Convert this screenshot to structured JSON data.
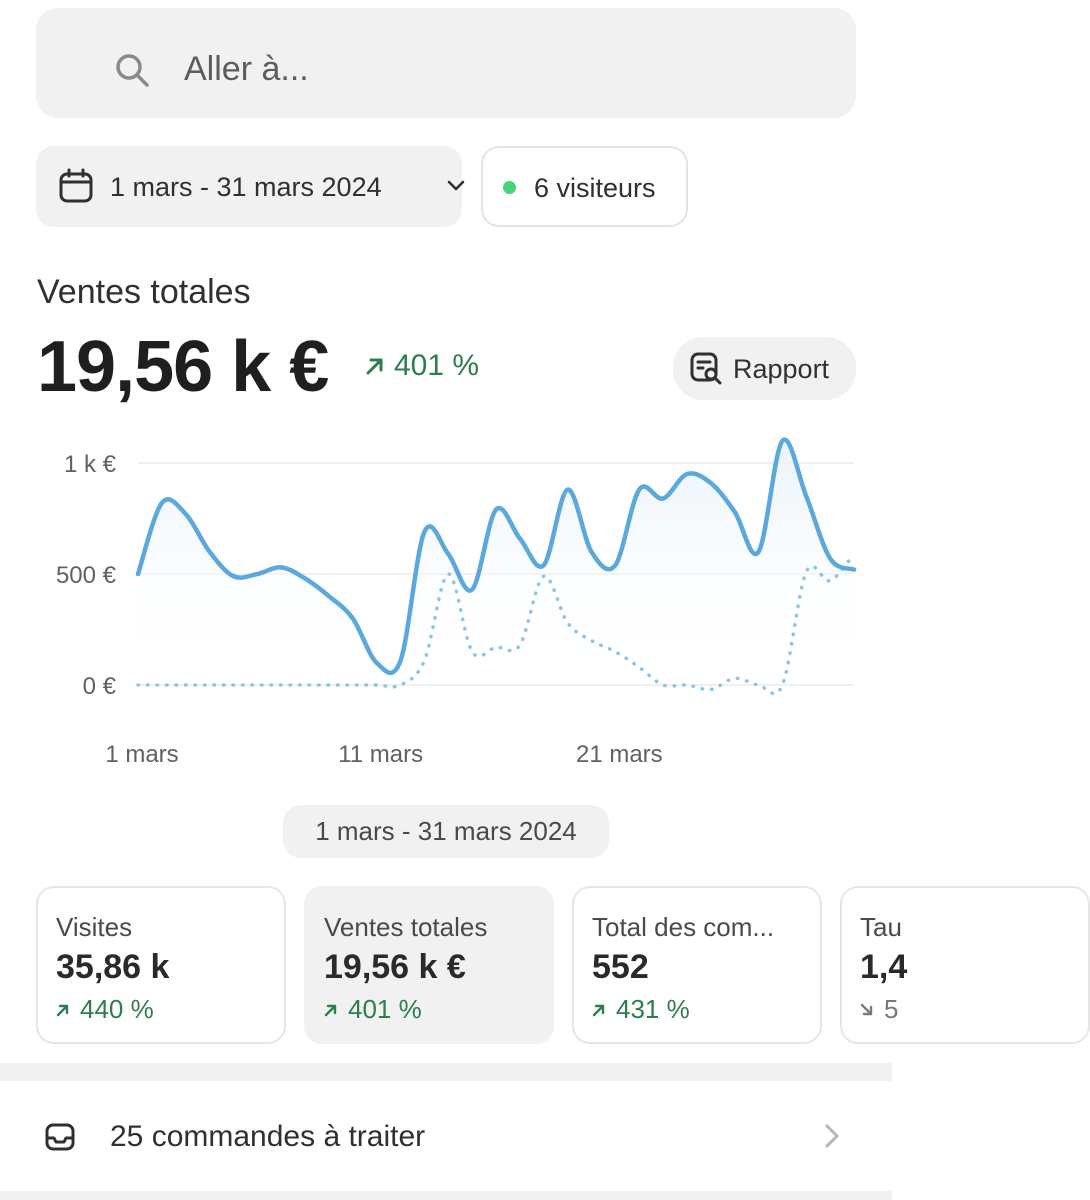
{
  "search": {
    "placeholder": "Aller à...",
    "icon": "search-icon"
  },
  "filters": {
    "date_range": "1 mars - 31 mars 2024",
    "visitors_label": "6 visiteurs",
    "visitors_dot_color": "#45d47a"
  },
  "metric": {
    "title": "Ventes totales",
    "value": "19,56 k €",
    "change": "401 %",
    "report_label": "Rapport"
  },
  "chart_data": {
    "type": "line",
    "y_ticks": [
      "1 k €",
      "500 €",
      "0 €"
    ],
    "x_ticks": [
      "1 mars",
      "11 mars",
      "21 mars"
    ],
    "ylim": [
      0,
      1000
    ],
    "x": [
      "1 mars",
      "2 mars",
      "3 mars",
      "4 mars",
      "5 mars",
      "6 mars",
      "7 mars",
      "8 mars",
      "9 mars",
      "10 mars",
      "11 mars",
      "12 mars",
      "13 mars",
      "14 mars",
      "15 mars",
      "16 mars",
      "17 mars",
      "18 mars",
      "19 mars",
      "20 mars",
      "21 mars",
      "22 mars",
      "23 mars",
      "24 mars",
      "25 mars",
      "26 mars",
      "27 mars",
      "28 mars",
      "29 mars",
      "30 mars",
      "31 mars"
    ],
    "series": [
      {
        "style": "solid",
        "color": "#5aa8dc",
        "values": [
          500,
          820,
          770,
          600,
          490,
          500,
          530,
          480,
          400,
          300,
          100,
          110,
          690,
          590,
          430,
          790,
          660,
          540,
          880,
          600,
          540,
          880,
          840,
          950,
          910,
          780,
          600,
          1100,
          850,
          570,
          520
        ]
      },
      {
        "style": "dotted",
        "color": "#8cc6e6",
        "values": [
          0,
          0,
          0,
          0,
          0,
          0,
          0,
          0,
          0,
          0,
          0,
          0,
          110,
          500,
          150,
          170,
          180,
          490,
          280,
          200,
          150,
          80,
          0,
          0,
          -20,
          30,
          0,
          0,
          510,
          470,
          590
        ]
      }
    ],
    "grid": true
  },
  "range_pill": "1 mars - 31 mars 2024",
  "cards": [
    {
      "title": "Visites",
      "value": "35,86 k",
      "change": "440 %",
      "trend": "up",
      "active": false
    },
    {
      "title": "Ventes totales",
      "value": "19,56 k €",
      "change": "401 %",
      "trend": "up",
      "active": true
    },
    {
      "title": "Total des com...",
      "value": "552",
      "change": "431 %",
      "trend": "up",
      "active": false
    },
    {
      "title": "Tau",
      "value": "1,4",
      "change": "5",
      "trend": "down",
      "active": false
    }
  ],
  "todo": {
    "label": "25 commandes à traiter",
    "icon": "inbox-icon"
  },
  "colors": {
    "accent_green": "#2e7d4f",
    "line_blue": "#5aa8dc",
    "surface": "#f1f1f1"
  }
}
